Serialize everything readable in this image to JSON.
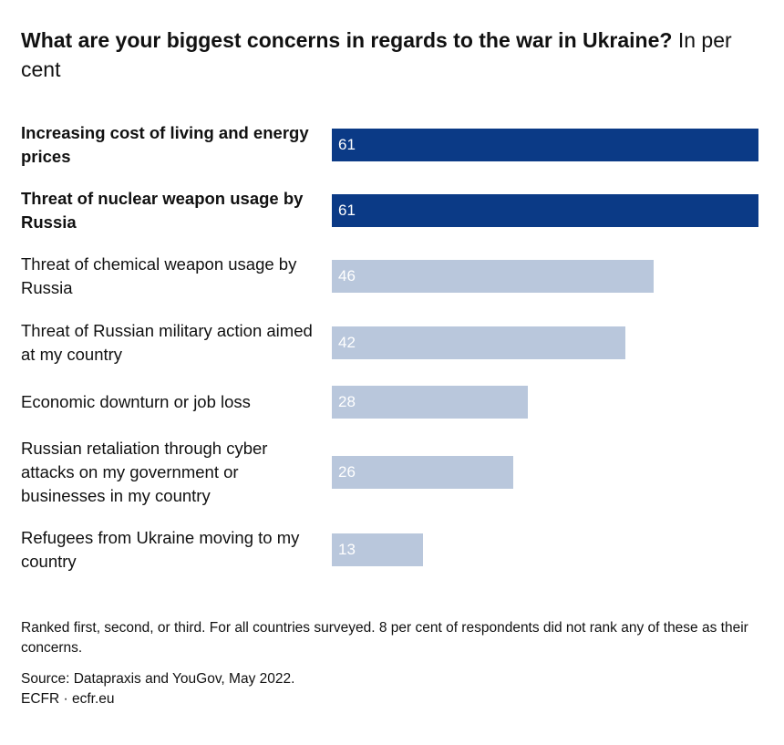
{
  "chart_data": {
    "type": "bar",
    "orientation": "horizontal",
    "title": "What are your biggest concerns in regards to the war in Ukraine?",
    "subtitle": "In per cent",
    "categories": [
      "Increasing cost of living and energy prices",
      "Threat of nuclear weapon usage by Russia",
      "Threat of chemical weapon usage by Russia",
      "Threat of Russian military action aimed at my country",
      "Economic downturn or job loss",
      "Russian retaliation through cyber attacks on my government or businesses in my country",
      "Refugees from Ukraine moving to my country"
    ],
    "values": [
      61,
      61,
      46,
      42,
      28,
      26,
      13
    ],
    "colors": [
      "#0b3a86",
      "#0b3a86",
      "#b9c7dc",
      "#b9c7dc",
      "#b9c7dc",
      "#b9c7dc",
      "#b9c7dc"
    ],
    "highlighted": [
      true,
      true,
      false,
      false,
      false,
      false,
      false
    ],
    "xlim": [
      0,
      61
    ],
    "note": "Ranked first, second, or third. For all countries surveyed. 8 per cent of respondents did not rank any of these as their concerns.",
    "source": "Source: Datapraxis and YouGov, May 2022.",
    "credit": "ECFR · ecfr.eu"
  }
}
